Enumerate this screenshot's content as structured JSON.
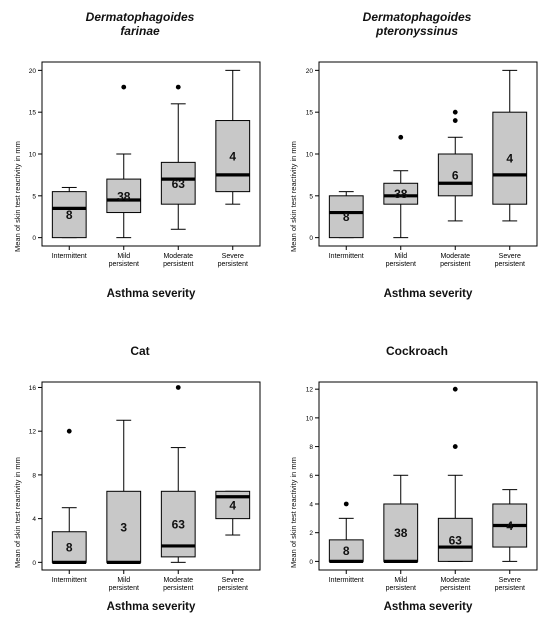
{
  "colors": {
    "box_fill": "#c8c8c8",
    "box_stroke": "#000000",
    "median": "#000000",
    "background": "#ffffff"
  },
  "chart_data": [
    {
      "type": "boxplot",
      "title_line1": "Dermatophagoides",
      "title_line2": "farinae",
      "title_italic": true,
      "xlabel": "Asthma severity",
      "ylabel": "Mean of skin test reactivity in mm",
      "categories": [
        "Intermittent",
        "Mild persistent",
        "Moderate persistent",
        "Severe persistent"
      ],
      "category_lines": [
        [
          "Intermittent"
        ],
        [
          "Mild",
          "persistent"
        ],
        [
          "Moderate",
          "persistent"
        ],
        [
          "Severe",
          "persistent"
        ]
      ],
      "ylim": [
        -1,
        21
      ],
      "yticks": [
        0,
        5,
        10,
        15,
        20
      ],
      "boxes": [
        {
          "min": 0,
          "q1": 0,
          "median": 3.5,
          "q3": 5.5,
          "max": 6,
          "n": "8",
          "outliers": []
        },
        {
          "min": 0,
          "q1": 3,
          "median": 4.5,
          "q3": 7,
          "max": 10,
          "n": "38",
          "outliers": [
            18
          ]
        },
        {
          "min": 1,
          "q1": 4,
          "median": 7,
          "q3": 9,
          "max": 16,
          "n": "63",
          "outliers": [
            18
          ]
        },
        {
          "min": 4,
          "q1": 5.5,
          "median": 7.5,
          "q3": 14,
          "max": 20,
          "n": "4",
          "outliers": []
        }
      ]
    },
    {
      "type": "boxplot",
      "title_line1": "Dermatophagoides",
      "title_line2": "pteronyssinus",
      "title_italic": true,
      "xlabel": "Asthma severity",
      "ylabel": "Mean of skin test reactivity in mm",
      "categories": [
        "Intermittent",
        "Mild persistent",
        "Moderate persistent",
        "Severe persistent"
      ],
      "category_lines": [
        [
          "Intermittent"
        ],
        [
          "Mild",
          "persistent"
        ],
        [
          "Moderate",
          "persistent"
        ],
        [
          "Severe",
          "persistent"
        ]
      ],
      "ylim": [
        -1,
        21
      ],
      "yticks": [
        0,
        5,
        10,
        15,
        20
      ],
      "boxes": [
        {
          "min": 0,
          "q1": 0,
          "median": 3,
          "q3": 5,
          "max": 5.5,
          "n": "8",
          "outliers": []
        },
        {
          "min": 0,
          "q1": 4,
          "median": 5,
          "q3": 6.5,
          "max": 8,
          "n": "38",
          "outliers": [
            12
          ]
        },
        {
          "min": 2,
          "q1": 5,
          "median": 6.5,
          "q3": 10,
          "max": 12,
          "n": "6",
          "outliers": [
            14,
            15
          ]
        },
        {
          "min": 2,
          "q1": 4,
          "median": 7.5,
          "q3": 15,
          "max": 20,
          "n": "4",
          "outliers": []
        }
      ]
    },
    {
      "type": "boxplot",
      "title_line1": "Cat",
      "title_line2": "",
      "title_italic": false,
      "xlabel": "Asthma severity",
      "ylabel": "Mean of skin test reactivity in mm",
      "categories": [
        "Intermittent",
        "Mild persistent",
        "Moderate persistent",
        "Severe persistent"
      ],
      "category_lines": [
        [
          "Intermittent"
        ],
        [
          "Mild",
          "persistent"
        ],
        [
          "Moderate",
          "persistent"
        ],
        [
          "Severe",
          "persistent"
        ]
      ],
      "ylim": [
        -0.7,
        16.5
      ],
      "yticks": [
        0,
        4,
        8,
        12,
        16
      ],
      "boxes": [
        {
          "min": 0,
          "q1": 0,
          "median": 0,
          "q3": 2.8,
          "max": 5,
          "n": "8",
          "outliers": [
            12
          ]
        },
        {
          "min": 0,
          "q1": 0,
          "median": 0,
          "q3": 6.5,
          "max": 13,
          "n": "3",
          "outliers": []
        },
        {
          "min": 0,
          "q1": 0.5,
          "median": 1.5,
          "q3": 6.5,
          "max": 10.5,
          "n": "63",
          "outliers": [
            16
          ]
        },
        {
          "min": 2.5,
          "q1": 4,
          "median": 6,
          "q3": 6.5,
          "max": 6.5,
          "n": "4",
          "outliers": []
        }
      ]
    },
    {
      "type": "boxplot",
      "title_line1": "Cockroach",
      "title_line2": "",
      "title_italic": false,
      "xlabel": "Asthma severity",
      "ylabel": "Mean of skin test reactivity in mm",
      "categories": [
        "Intermittent",
        "Mild persistent",
        "Moderate persistent",
        "Severe persistent"
      ],
      "category_lines": [
        [
          "Intermittent"
        ],
        [
          "Mild",
          "persistent"
        ],
        [
          "Moderate",
          "persistent"
        ],
        [
          "Severe",
          "persistent"
        ]
      ],
      "ylim": [
        -0.6,
        12.5
      ],
      "yticks": [
        0,
        2,
        4,
        6,
        8,
        10,
        12
      ],
      "boxes": [
        {
          "min": 0,
          "q1": 0,
          "median": 0,
          "q3": 1.5,
          "max": 3,
          "n": "8",
          "outliers": [
            4
          ]
        },
        {
          "min": 0,
          "q1": 0,
          "median": 0,
          "q3": 4,
          "max": 6,
          "n": "38",
          "outliers": []
        },
        {
          "min": 0,
          "q1": 0,
          "median": 1,
          "q3": 3,
          "max": 6,
          "n": "63",
          "outliers": [
            8,
            12
          ]
        },
        {
          "min": 0,
          "q1": 1,
          "median": 2.5,
          "q3": 4,
          "max": 5,
          "n": "4",
          "outliers": []
        }
      ]
    }
  ]
}
